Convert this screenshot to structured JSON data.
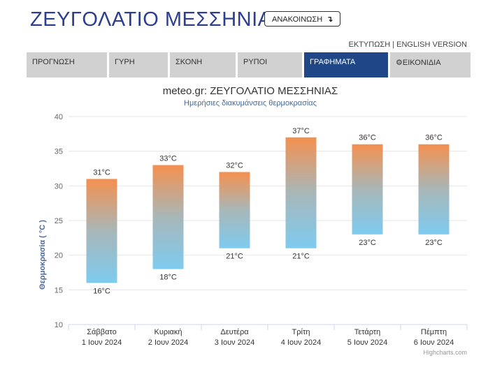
{
  "header": {
    "title": "ΖΕΥΓΟΛΑΤΙΟ ΜΕΣΣΗΝΙΑΣ",
    "announce_label": "ΑΝΑΚΟΙΝΩΣΗ",
    "announce_icon": "arrow-down-icon",
    "print_label": "ΕΚΤΥΠΩΣΗ",
    "separator": "|",
    "english_label": "ENGLISH VERSION"
  },
  "tabs": [
    {
      "label": "ΠΡΟΓΝΩΣΗ",
      "active": false
    },
    {
      "label": "ΓΥΡΗ",
      "active": false
    },
    {
      "label": "ΣΚΟΝΗ",
      "active": false
    },
    {
      "label": "ΡΥΠΟΙ",
      "active": false
    },
    {
      "label": "ΓΡΑΦΗΜΑΤΑ",
      "active": true
    },
    {
      "label": "ΕΙΚΟΝΙΔΙΑ",
      "active": false,
      "icon": "gear-icon"
    }
  ],
  "colors": {
    "title": "#2c3e8f",
    "active_tab": "#1f4788",
    "tab": "#d1d1d1",
    "bar_top": "#f4904f",
    "bar_mid": "#a8b7b8",
    "bar_bottom": "#7ecbf0",
    "axis_title": "#4a6a9c"
  },
  "chart_data": {
    "type": "columnrange",
    "title": "meteo.gr: ΖΕΥΓΟΛΑΤΙΟ ΜΕΣΣΗΝΙΑΣ",
    "subtitle": "Ημερήσιες διακυμάνσεις θερμοκρασίας",
    "ylabel": "Θερμοκρασία ( °C )",
    "ylim": [
      10,
      40
    ],
    "yticks": [
      10,
      15,
      20,
      25,
      30,
      35,
      40
    ],
    "grid": true,
    "categories": [
      [
        "Σάββατο",
        "1 Ιουν 2024"
      ],
      [
        "Κυριακή",
        "2 Ιουν 2024"
      ],
      [
        "Δευτέρα",
        "3 Ιουν 2024"
      ],
      [
        "Τρίτη",
        "4 Ιουν 2024"
      ],
      [
        "Τετάρτη",
        "5 Ιουν 2024"
      ],
      [
        "Πέμπτη",
        "6 Ιουν 2024"
      ]
    ],
    "low": [
      16,
      18,
      21,
      21,
      23,
      23
    ],
    "high": [
      31,
      33,
      32,
      37,
      36,
      36
    ],
    "unit": "°C",
    "credit": "Highcharts.com"
  }
}
